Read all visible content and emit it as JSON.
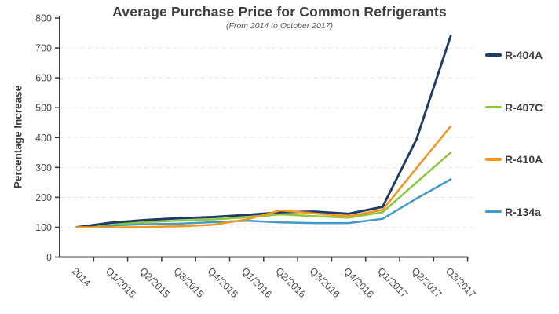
{
  "chart_data": {
    "type": "line",
    "title": "Average Purchase Price for Common Refrigerants",
    "subtitle": "(From 2014 to October 2017)",
    "xlabel": "",
    "ylabel": "Percentage Increase",
    "ylim": [
      0,
      800
    ],
    "yticks": [
      0,
      100,
      200,
      300,
      400,
      500,
      600,
      700,
      800
    ],
    "grid": "horizontal-dashed",
    "legend_position": "right",
    "categories": [
      "2014",
      "Q1/2015",
      "Q2/2015",
      "Q3/2015",
      "Q4/2015",
      "Q1/2016",
      "Q2/2016",
      "Q3/2016",
      "Q4/2016",
      "Q1/2017",
      "Q2/2017",
      "Q3/2017"
    ],
    "series": [
      {
        "name": "R-404A",
        "color": "#1d3b63",
        "values": [
          100,
          115,
          124,
          130,
          134,
          141,
          150,
          152,
          145,
          168,
          395,
          740
        ]
      },
      {
        "name": "R-407C",
        "color": "#8dc63f",
        "values": [
          100,
          110,
          117,
          122,
          126,
          133,
          143,
          137,
          132,
          150,
          250,
          350
        ]
      },
      {
        "name": "R-410A",
        "color": "#f7941d",
        "values": [
          100,
          99,
          101,
          103,
          108,
          126,
          156,
          146,
          137,
          158,
          298,
          438
        ]
      },
      {
        "name": "R-134a",
        "color": "#4599c4",
        "values": [
          100,
          106,
          110,
          112,
          117,
          122,
          116,
          114,
          114,
          128,
          196,
          260
        ]
      }
    ],
    "colors": {
      "axis": "#3f3f3f",
      "grid": "#e8e8e8",
      "tick_label": "#4d4d4d",
      "title_text": "#3f3f3f",
      "subtitle_text": "#595959"
    }
  }
}
